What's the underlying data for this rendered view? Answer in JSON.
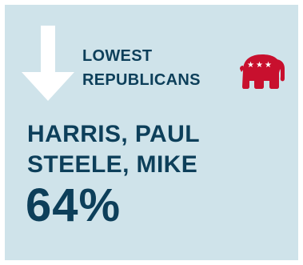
{
  "card": {
    "heading_line1": "LOWEST",
    "heading_line2": "REPUBLICANS",
    "name_line1": "HARRIS, PAUL",
    "name_line2": "STEELE, MIKE",
    "percentage": "64%"
  },
  "icons": {
    "arrow": "down-arrow-icon",
    "party": "republican-elephant-icon"
  },
  "colors": {
    "background": "#cfe3ea",
    "text": "#0d3f5a",
    "arrow": "#ffffff",
    "elephant": "#c8102e"
  }
}
